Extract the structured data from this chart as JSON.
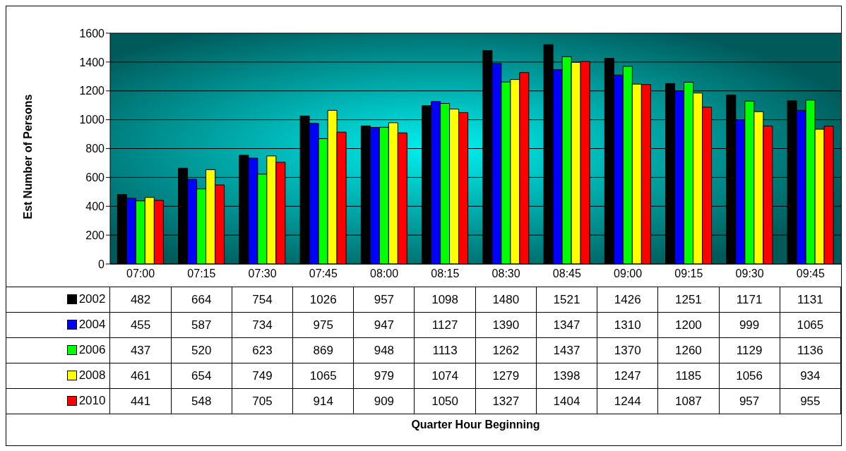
{
  "chart_data": {
    "type": "bar",
    "annotations": [
      "Quarter Hour Beginning"
    ],
    "ylabel": "Est Number of Persons",
    "categories": [
      "07:00",
      "07:15",
      "07:30",
      "07:45",
      "08:00",
      "08:15",
      "08:30",
      "08:45",
      "09:00",
      "09:15",
      "09:30",
      "09:45"
    ],
    "series": [
      {
        "name": "2002",
        "color": "#000000",
        "values": [
          482,
          664,
          754,
          1026,
          957,
          1098,
          1480,
          1521,
          1426,
          1251,
          1171,
          1131
        ]
      },
      {
        "name": "2004",
        "color": "#0000ff",
        "values": [
          455,
          587,
          734,
          975,
          947,
          1127,
          1390,
          1347,
          1310,
          1200,
          999,
          1065
        ]
      },
      {
        "name": "2006",
        "color": "#00ff00",
        "values": [
          437,
          520,
          623,
          869,
          948,
          1113,
          1262,
          1437,
          1370,
          1260,
          1129,
          1136
        ]
      },
      {
        "name": "2008",
        "color": "#ffff00",
        "values": [
          461,
          654,
          749,
          1065,
          979,
          1074,
          1279,
          1398,
          1247,
          1185,
          1056,
          934
        ]
      },
      {
        "name": "2010",
        "color": "#ff0000",
        "values": [
          441,
          548,
          705,
          914,
          909,
          1050,
          1327,
          1404,
          1244,
          1087,
          957,
          955
        ]
      }
    ],
    "ylim": [
      0,
      1600
    ],
    "yticks": [
      0,
      200,
      400,
      600,
      800,
      1000,
      1200,
      1400,
      1600
    ],
    "grid": "y",
    "data_labels": true,
    "legend": "bottom"
  }
}
